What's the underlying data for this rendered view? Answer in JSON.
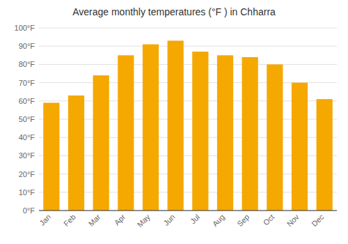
{
  "chart_data": {
    "type": "bar",
    "title": "Average monthly temperatures (°F ) in Chharra",
    "categories": [
      "Jan",
      "Feb",
      "Mar",
      "Apr",
      "May",
      "Jun",
      "Jul",
      "Aug",
      "Sep",
      "Oct",
      "Nov",
      "Dec"
    ],
    "values": [
      59,
      63,
      74,
      85,
      91,
      93,
      87,
      85,
      84,
      80,
      70,
      61
    ],
    "color": "#F5A800",
    "ylim": [
      0,
      100
    ],
    "yticks": [
      {
        "value": 0,
        "label": "0°F"
      },
      {
        "value": 10,
        "label": "10°F"
      },
      {
        "value": 20,
        "label": "20°F"
      },
      {
        "value": 30,
        "label": "30°F"
      },
      {
        "value": 40,
        "label": "40°F"
      },
      {
        "value": 50,
        "label": "50°F"
      },
      {
        "value": 60,
        "label": "60°F"
      },
      {
        "value": 70,
        "label": "70°F"
      },
      {
        "value": 80,
        "label": "80°F"
      },
      {
        "value": 90,
        "label": "90°F"
      },
      {
        "value": 100,
        "label": "100°F"
      }
    ],
    "grid": true
  }
}
